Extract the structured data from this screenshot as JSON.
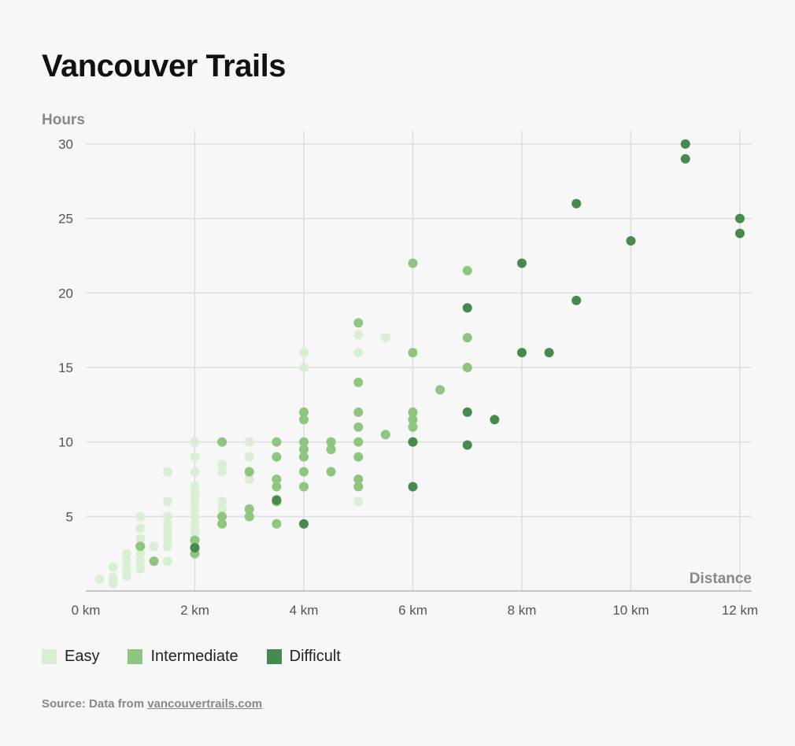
{
  "title": "Vancouver Trails",
  "source": {
    "prefix": "Source: Data from ",
    "link_text": "vancouvertrails.com"
  },
  "colors": {
    "Easy": "#d9efd3",
    "Intermediate": "#8ec57f",
    "Difficult": "#478a4d"
  },
  "chart_data": {
    "type": "scatter",
    "xlabel": "Distance",
    "ylabel": "Hours",
    "xlim": [
      0,
      12
    ],
    "ylim": [
      0,
      30
    ],
    "xticks": [
      "0 km",
      "2 km",
      "4 km",
      "6 km",
      "8 km",
      "10 km",
      "12 km"
    ],
    "yticks": [
      "5",
      "10",
      "15",
      "20",
      "25",
      "30"
    ],
    "grid": true,
    "legend_placement": "bottom",
    "series": [
      {
        "name": "Easy",
        "points": [
          [
            0.25,
            0.8
          ],
          [
            0.5,
            0.5
          ],
          [
            0.5,
            0.9
          ],
          [
            0.5,
            1.6
          ],
          [
            0.75,
            1.0
          ],
          [
            0.75,
            1.5
          ],
          [
            0.75,
            2.0
          ],
          [
            0.75,
            2.5
          ],
          [
            1,
            1.5
          ],
          [
            1,
            2.0
          ],
          [
            1,
            2.5
          ],
          [
            1,
            3.0
          ],
          [
            1,
            3.5
          ],
          [
            1,
            4.2
          ],
          [
            1,
            5.0
          ],
          [
            1.25,
            3.0
          ],
          [
            1.5,
            2.0
          ],
          [
            1.5,
            3.0
          ],
          [
            1.5,
            3.5
          ],
          [
            1.5,
            4.0
          ],
          [
            1.5,
            4.5
          ],
          [
            1.5,
            5.0
          ],
          [
            1.5,
            6.0
          ],
          [
            1.5,
            8.0
          ],
          [
            2,
            3.0
          ],
          [
            2,
            3.5
          ],
          [
            2,
            4.0
          ],
          [
            2,
            4.5
          ],
          [
            2,
            5.0
          ],
          [
            2,
            5.5
          ],
          [
            2,
            6.0
          ],
          [
            2,
            6.5
          ],
          [
            2,
            7.0
          ],
          [
            2,
            8.0
          ],
          [
            2,
            9.0
          ],
          [
            2,
            10.0
          ],
          [
            2.5,
            5.0
          ],
          [
            2.5,
            5.5
          ],
          [
            2.5,
            6.0
          ],
          [
            2.5,
            8.0
          ],
          [
            2.5,
            8.5
          ],
          [
            3,
            7.5
          ],
          [
            3,
            8.0
          ],
          [
            3,
            9.0
          ],
          [
            3,
            10.0
          ],
          [
            3.5,
            6.2
          ],
          [
            4,
            15.0
          ],
          [
            4,
            16.0
          ],
          [
            5,
            6.0
          ],
          [
            5,
            16.0
          ],
          [
            5,
            17.2
          ],
          [
            5.5,
            17.0
          ]
        ]
      },
      {
        "name": "Intermediate",
        "points": [
          [
            1,
            3.0
          ],
          [
            1.25,
            2.0
          ],
          [
            2,
            2.5
          ],
          [
            2,
            3.4
          ],
          [
            2.5,
            4.5
          ],
          [
            2.5,
            5.0
          ],
          [
            2.5,
            10.0
          ],
          [
            3,
            5.0
          ],
          [
            3,
            5.5
          ],
          [
            3,
            8.0
          ],
          [
            3.5,
            4.5
          ],
          [
            3.5,
            6.0
          ],
          [
            3.5,
            7.0
          ],
          [
            3.5,
            7.5
          ],
          [
            3.5,
            9.0
          ],
          [
            3.5,
            10.0
          ],
          [
            4,
            7.0
          ],
          [
            4,
            8.0
          ],
          [
            4,
            9.0
          ],
          [
            4,
            9.5
          ],
          [
            4,
            10.0
          ],
          [
            4,
            11.5
          ],
          [
            4,
            12.0
          ],
          [
            4.5,
            8.0
          ],
          [
            4.5,
            9.5
          ],
          [
            4.5,
            10.0
          ],
          [
            5,
            7.0
          ],
          [
            5,
            7.5
          ],
          [
            5,
            9.0
          ],
          [
            5,
            10.0
          ],
          [
            5,
            11.0
          ],
          [
            5,
            12.0
          ],
          [
            5,
            14.0
          ],
          [
            5,
            18.0
          ],
          [
            5.5,
            10.5
          ],
          [
            6,
            11.0
          ],
          [
            6,
            11.5
          ],
          [
            6,
            12.0
          ],
          [
            6,
            16.0
          ],
          [
            6,
            22.0
          ],
          [
            6.5,
            13.5
          ],
          [
            7,
            15.0
          ],
          [
            7,
            17.0
          ],
          [
            7,
            21.5
          ]
        ]
      },
      {
        "name": "Difficult",
        "points": [
          [
            2,
            2.9
          ],
          [
            3.5,
            6.1
          ],
          [
            4,
            4.5
          ],
          [
            6,
            7.0
          ],
          [
            6,
            10.0
          ],
          [
            7,
            9.8
          ],
          [
            7,
            12.0
          ],
          [
            7,
            19.0
          ],
          [
            7.5,
            11.5
          ],
          [
            8,
            16.0
          ],
          [
            8,
            22.0
          ],
          [
            8.5,
            16.0
          ],
          [
            9,
            19.5
          ],
          [
            9,
            26.0
          ],
          [
            10,
            23.5
          ],
          [
            11,
            29.0
          ],
          [
            11,
            30.0
          ],
          [
            12,
            24.0
          ],
          [
            12,
            25.0
          ]
        ]
      }
    ]
  }
}
